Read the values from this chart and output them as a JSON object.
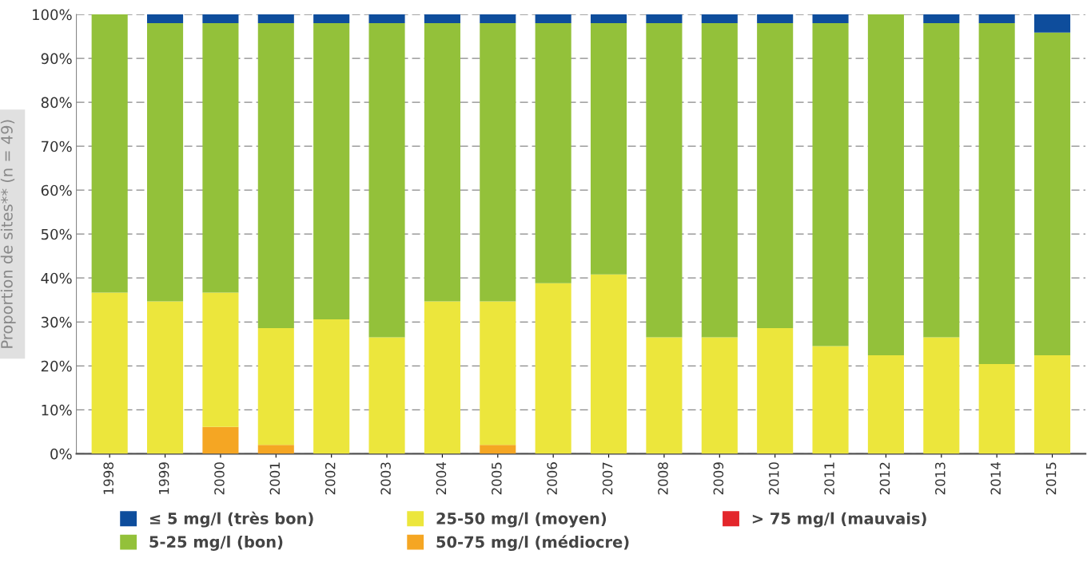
{
  "chart_data": {
    "type": "bar",
    "stacked": true,
    "ylabel": "Proportion de sites** (n = 49)",
    "categories": [
      "1998",
      "1999",
      "2000",
      "2001",
      "2002",
      "2003",
      "2004",
      "2005",
      "2006",
      "2007",
      "2008",
      "2009",
      "2010",
      "2011",
      "2012",
      "2013",
      "2014",
      "2015"
    ],
    "series": [
      {
        "name": "> 75 mg/l (mauvais)",
        "color": "#e3262b",
        "values": [
          0,
          0,
          0,
          0,
          0,
          0,
          0,
          0,
          0,
          0,
          0,
          0,
          0,
          0,
          0,
          0,
          0,
          0
        ]
      },
      {
        "name": "50-75 mg/l (médiocre)",
        "color": "#f5a623",
        "values": [
          0,
          0,
          6.1,
          2.0,
          0,
          0,
          0,
          2.0,
          0,
          0,
          0,
          0,
          0,
          0,
          0,
          0,
          0,
          0
        ]
      },
      {
        "name": "25-50 mg/l (moyen)",
        "color": "#ece63c",
        "values": [
          36.7,
          34.7,
          30.6,
          26.6,
          30.6,
          26.5,
          34.7,
          32.7,
          38.8,
          40.8,
          26.5,
          26.5,
          28.6,
          24.5,
          22.4,
          26.5,
          20.4,
          22.4
        ]
      },
      {
        "name": "5-25 mg/l (bon)",
        "color": "#93c13a",
        "values": [
          63.3,
          63.3,
          61.3,
          69.4,
          67.4,
          71.5,
          63.3,
          63.3,
          59.2,
          57.2,
          71.5,
          71.5,
          69.4,
          73.5,
          77.6,
          71.5,
          77.6,
          73.5
        ]
      },
      {
        "name": "≤ 5 mg/l (très bon)",
        "color": "#0e4d9c",
        "values": [
          0,
          2.0,
          2.0,
          2.0,
          2.0,
          2.0,
          2.0,
          2.0,
          2.0,
          2.0,
          2.0,
          2.0,
          2.0,
          2.0,
          0,
          2.0,
          2.0,
          4.1
        ]
      }
    ],
    "ylim": [
      0,
      100
    ],
    "yticks": [
      {
        "value": 0,
        "label": "0%"
      },
      {
        "value": 10,
        "label": "10%"
      },
      {
        "value": 20,
        "label": "20%"
      },
      {
        "value": 30,
        "label": "30%"
      },
      {
        "value": 40,
        "label": "40%"
      },
      {
        "value": 50,
        "label": "50%"
      },
      {
        "value": 60,
        "label": "60%"
      },
      {
        "value": 70,
        "label": "70%"
      },
      {
        "value": 80,
        "label": "80%"
      },
      {
        "value": 90,
        "label": "90%"
      },
      {
        "value": 100,
        "label": "100%"
      }
    ],
    "grid": "y",
    "legend": "bottom"
  }
}
